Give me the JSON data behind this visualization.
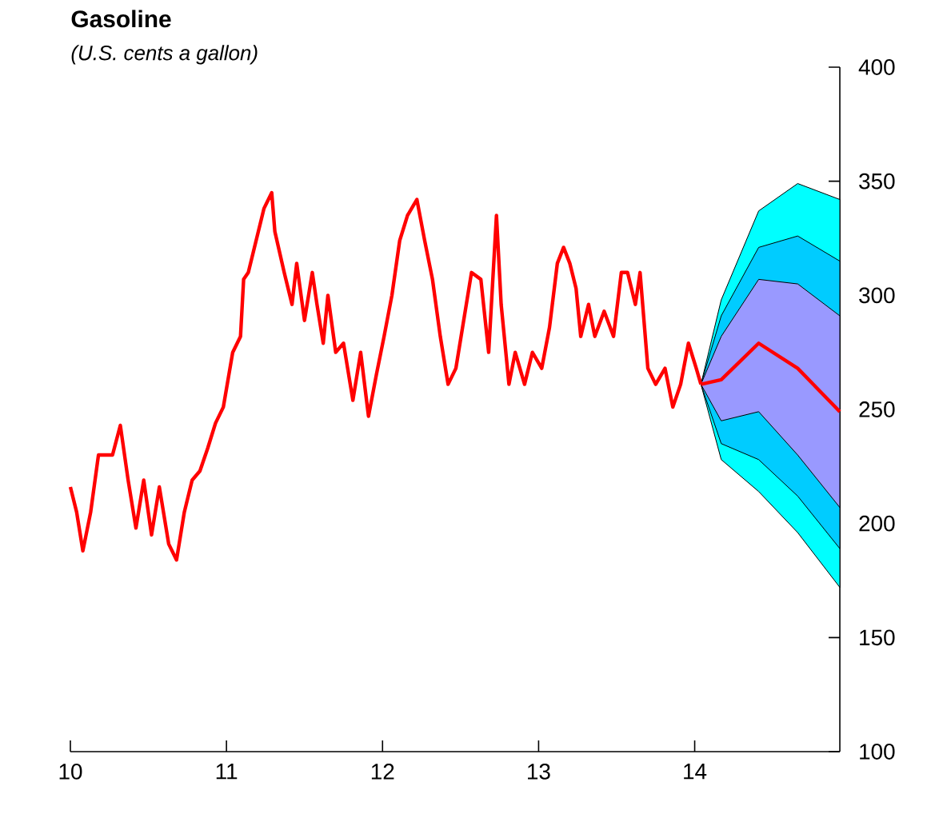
{
  "chart_data": {
    "type": "line",
    "title": "Gasoline",
    "subtitle": "(U.S. cents a gallon)",
    "xlim": [
      10,
      14.93
    ],
    "xticks": [
      10,
      11,
      12,
      13,
      14
    ],
    "ylim": [
      100,
      400
    ],
    "yticks": [
      100,
      150,
      200,
      250,
      300,
      350,
      400
    ],
    "series": [
      {
        "color": "#00ffff",
        "x": [
          14.04,
          14.17,
          14.41,
          14.66,
          14.93
        ],
        "values": [
          null,
          null,
          null,
          null,
          null
        ],
        "lower": [
          261,
          228,
          214,
          196,
          172
        ],
        "upper": [
          261,
          298,
          337,
          349,
          342
        ]
      },
      {
        "color": "#00ccff",
        "x": [
          14.04,
          14.17,
          14.41,
          14.66,
          14.93
        ],
        "values": [
          null,
          null,
          null,
          null,
          null
        ],
        "lower": [
          261,
          235,
          228,
          212,
          189
        ],
        "upper": [
          261,
          291,
          321,
          326,
          315
        ]
      },
      {
        "color": "#9999ff",
        "x": [
          14.04,
          14.17,
          14.41,
          14.66,
          14.93
        ],
        "values": [
          null,
          null,
          null,
          null,
          null
        ],
        "lower": [
          261,
          245,
          249,
          230,
          207
        ],
        "upper": [
          261,
          282,
          307,
          305,
          291
        ]
      },
      {
        "type": "line",
        "color": "#ff0000",
        "x": [
          14.04,
          14.17,
          14.41,
          14.66,
          14.93
        ],
        "values": [
          261,
          263,
          279,
          268,
          249
        ]
      },
      {
        "type": "line",
        "color": "#ff0000",
        "x": [
          10.0,
          10.04,
          10.08,
          10.13,
          10.18,
          10.27,
          10.32,
          10.37,
          10.42,
          10.47,
          10.52,
          10.57,
          10.63,
          10.68,
          10.73,
          10.78,
          10.83,
          10.88,
          10.93,
          10.98,
          11.04,
          11.09,
          11.11,
          11.14,
          11.19,
          11.24,
          11.29,
          11.31,
          11.37,
          11.42,
          11.45,
          11.5,
          11.55,
          11.58,
          11.62,
          11.65,
          11.7,
          11.75,
          11.81,
          11.86,
          11.91,
          11.96,
          12.01,
          12.06,
          12.11,
          12.16,
          12.22,
          12.27,
          12.32,
          12.37,
          12.42,
          12.47,
          12.52,
          12.57,
          12.63,
          12.68,
          12.73,
          12.76,
          12.81,
          12.85,
          12.91,
          12.96,
          13.02,
          13.07,
          13.12,
          13.16,
          13.2,
          13.24,
          13.27,
          13.32,
          13.36,
          13.42,
          13.48,
          13.53,
          13.57,
          13.62,
          13.65,
          13.7,
          13.75,
          13.81,
          13.86,
          13.91,
          13.96,
          14.01,
          14.04
        ],
        "values": [
          216,
          205,
          188,
          205,
          230,
          230,
          243,
          219,
          198,
          219,
          195,
          216,
          191,
          184,
          205,
          219,
          223,
          233,
          244,
          251,
          275,
          282,
          307,
          310,
          324,
          338,
          345,
          328,
          310,
          296,
          314,
          289,
          310,
          296,
          279,
          300,
          275,
          279,
          254,
          275,
          247,
          265,
          282,
          300,
          324,
          335,
          342,
          324,
          307,
          282,
          261,
          268,
          289,
          310,
          307,
          275,
          335,
          296,
          261,
          275,
          261,
          275,
          268,
          286,
          314,
          321,
          314,
          303,
          282,
          296,
          282,
          293,
          282,
          310,
          310,
          296,
          310,
          268,
          261,
          268,
          251,
          261,
          279,
          268,
          261
        ]
      }
    ]
  }
}
